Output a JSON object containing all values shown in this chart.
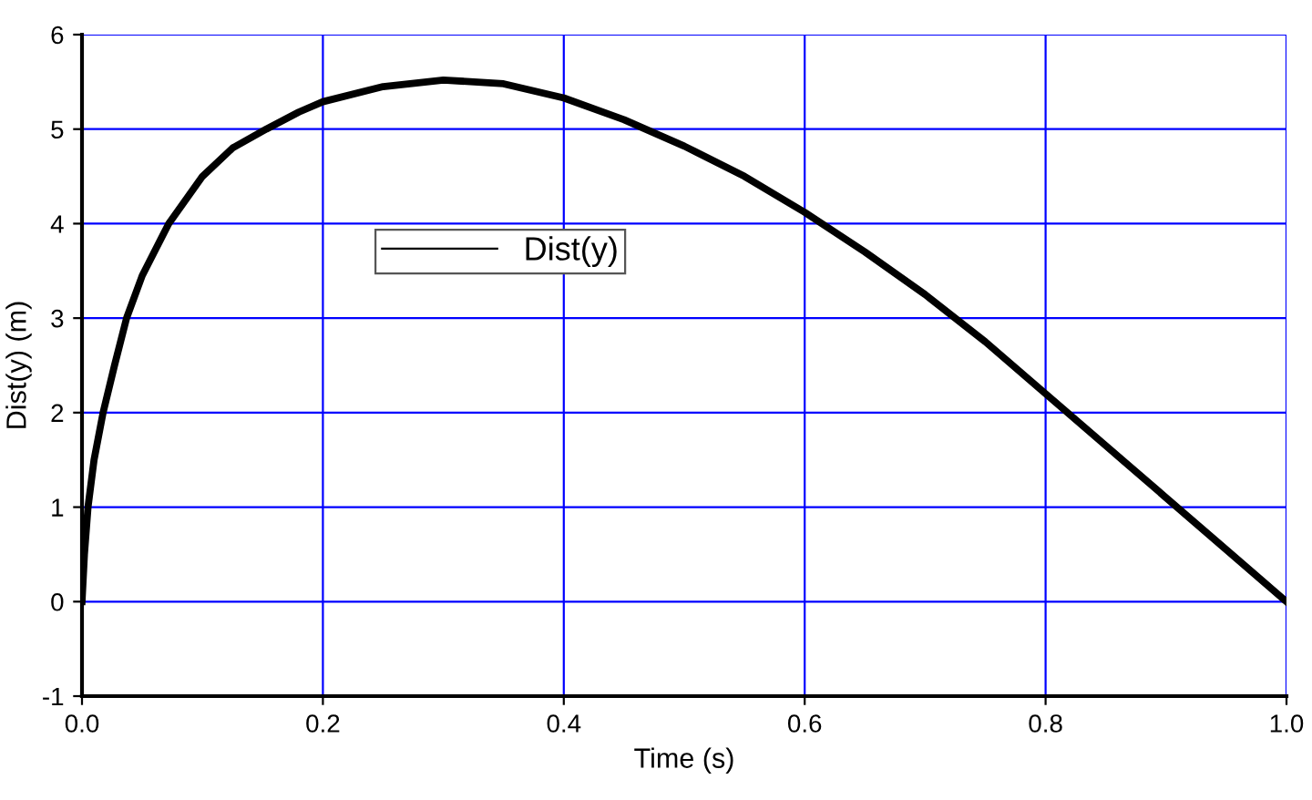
{
  "chart_data": {
    "type": "line",
    "xlabel": "Time (s)",
    "ylabel": "Dist(y) (m)",
    "series": [
      {
        "name": "Dist(y)",
        "color": "#000000",
        "x": [
          0,
          0.002,
          0.005,
          0.01,
          0.0175,
          0.027,
          0.037,
          0.05,
          0.072,
          0.1,
          0.125,
          0.153,
          0.18,
          0.2,
          0.25,
          0.3,
          0.35,
          0.4,
          0.45,
          0.5,
          0.55,
          0.6,
          0.65,
          0.7,
          0.75,
          0.8,
          0.85,
          0.9,
          0.95,
          1.0
        ],
        "values": [
          0,
          0.5,
          1,
          1.5,
          2,
          2.5,
          3,
          3.45,
          4,
          4.5,
          4.8,
          5,
          5.18,
          5.29,
          5.45,
          5.52,
          5.48,
          5.33,
          5.1,
          4.82,
          4.5,
          4.12,
          3.7,
          3.25,
          2.75,
          2.2,
          1.65,
          1.1,
          0.55,
          0
        ]
      }
    ],
    "xlim": [
      0,
      1.0
    ],
    "xticks": [
      {
        "value": 0,
        "label": "0.0"
      },
      0.2,
      0.4,
      0.6,
      0.8,
      {
        "value": 1.0,
        "label": "1.0"
      }
    ],
    "ylim": [
      -1,
      6
    ],
    "yticks": [
      -1,
      0,
      1,
      2,
      3,
      4,
      5,
      6
    ],
    "grid": true,
    "legend": "top left",
    "marker": "none",
    "line_style": "solid"
  }
}
